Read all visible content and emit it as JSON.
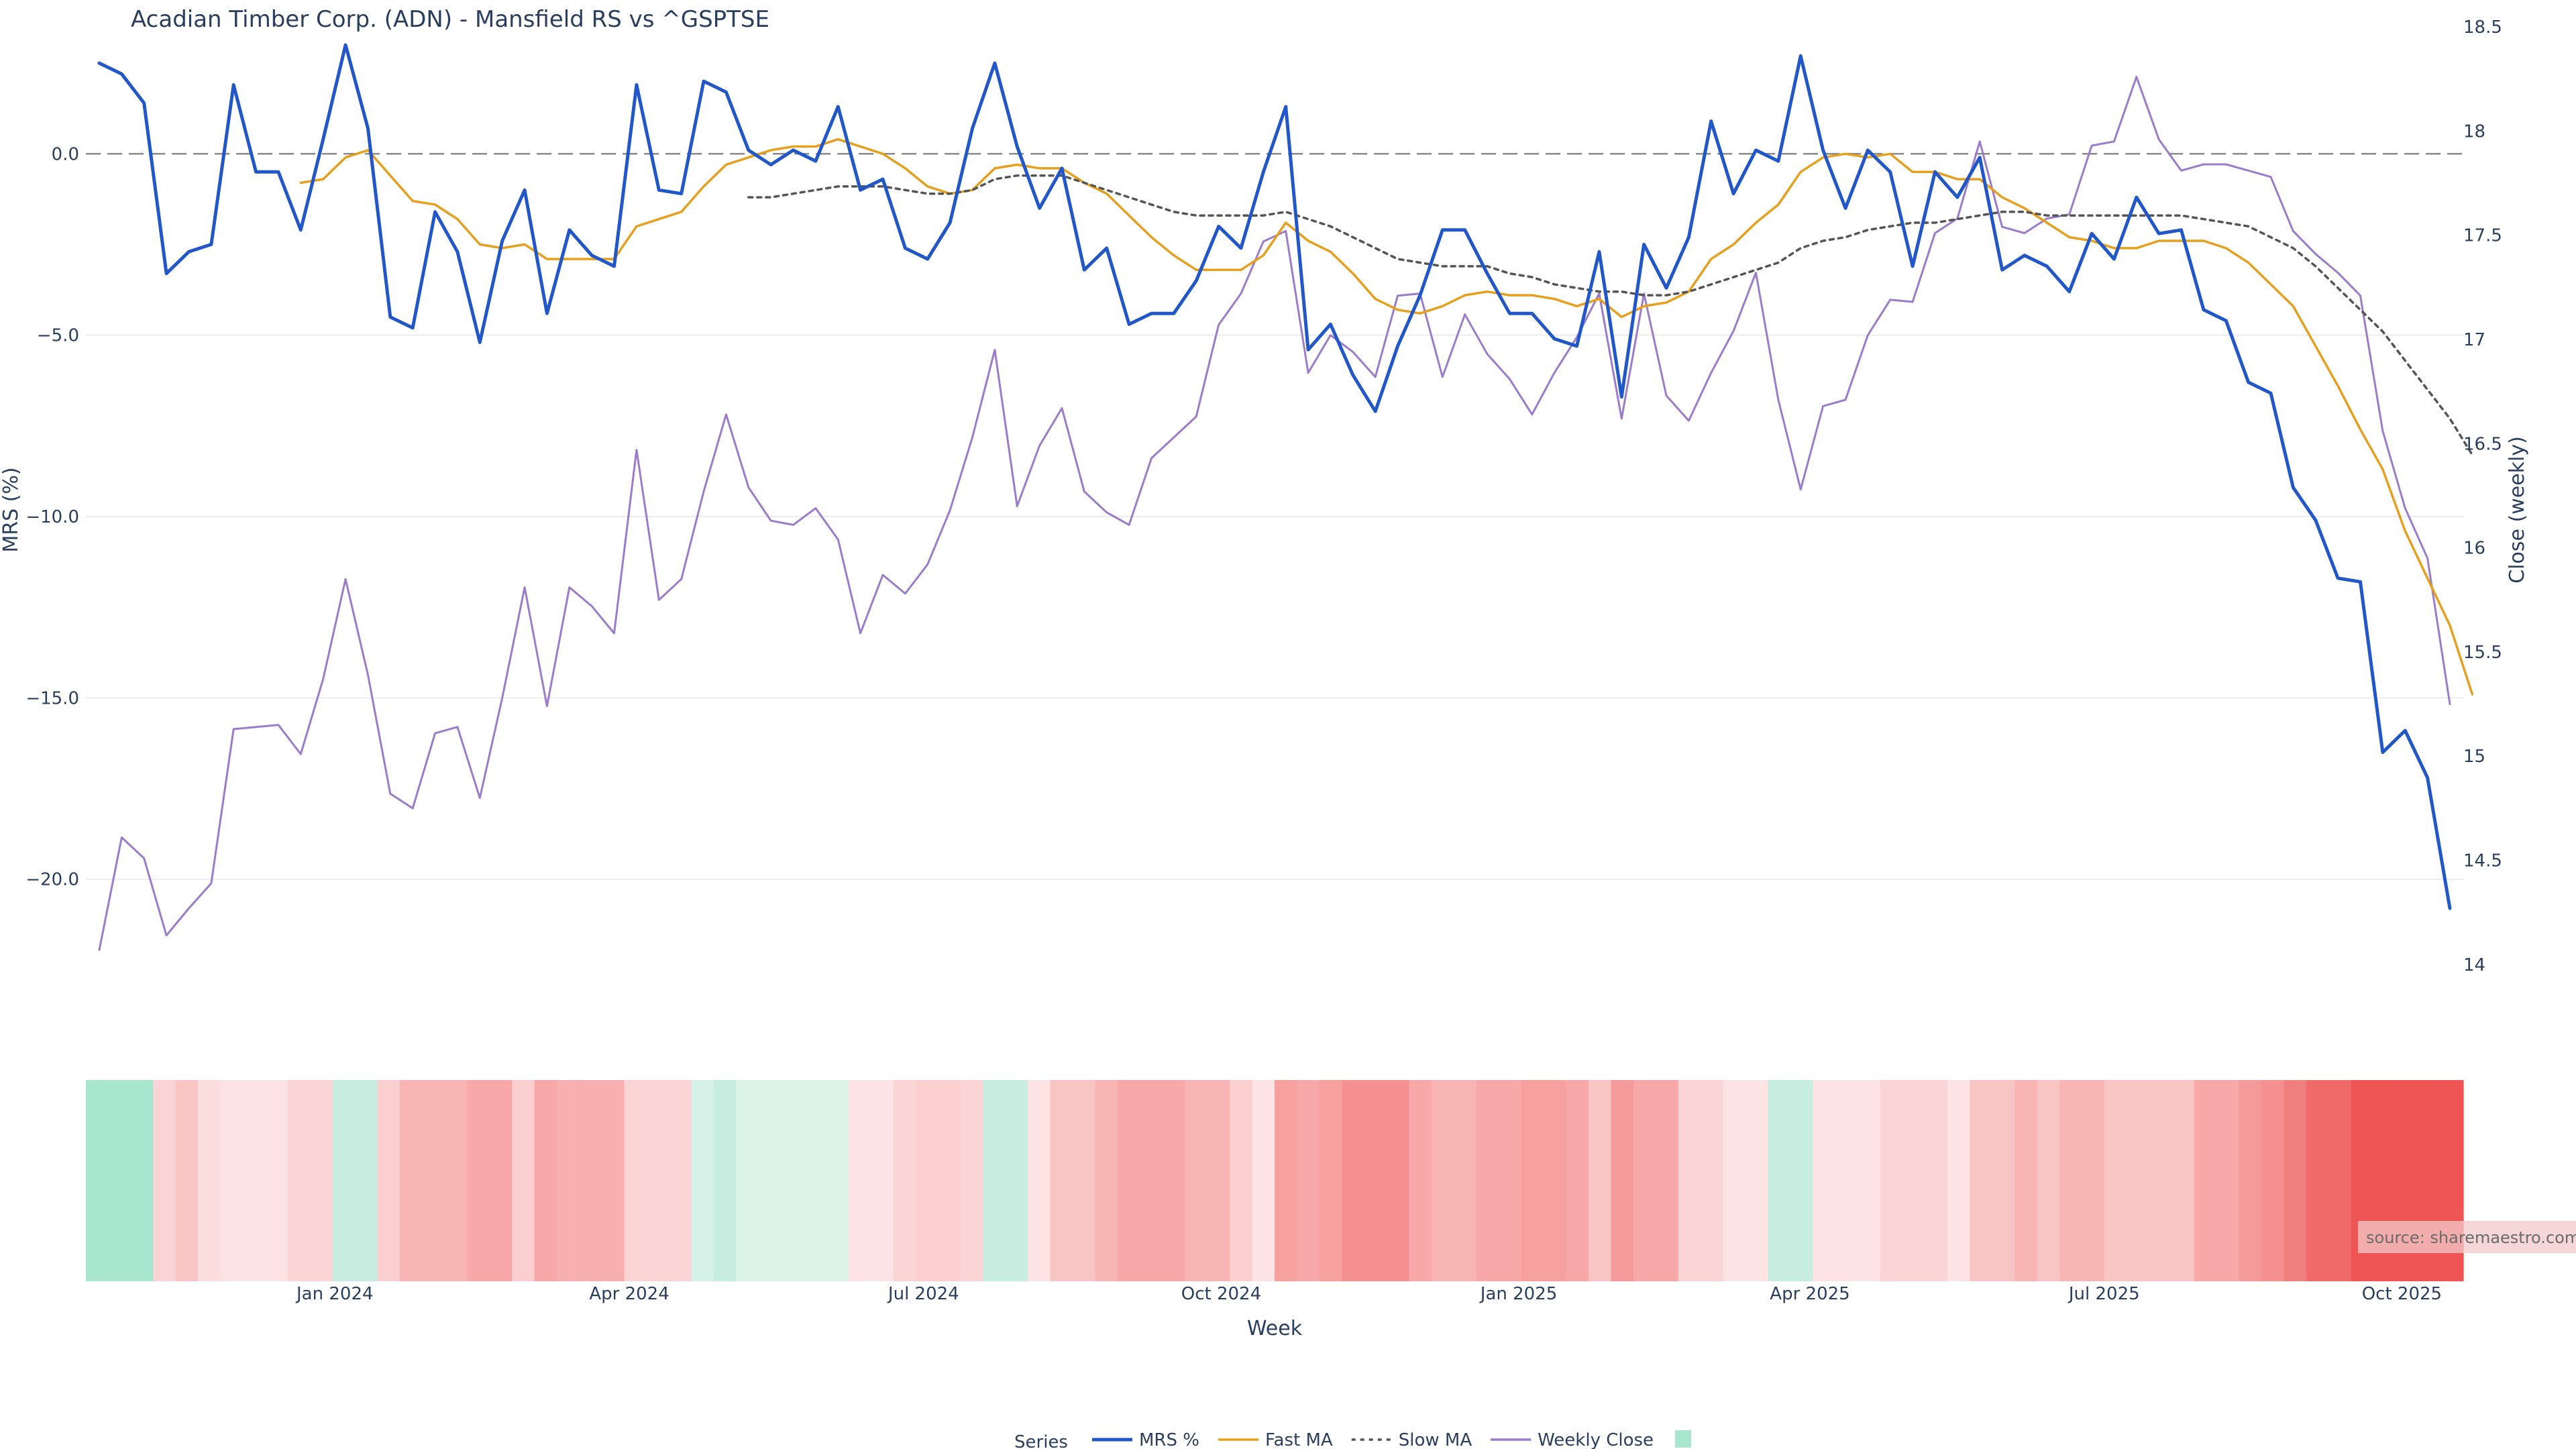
{
  "chart_data": {
    "type": "line",
    "title": "Acadian Timber Corp. (ADN) - Mansfield RS vs ^GSPTSE",
    "xlabel": "Week",
    "ylabel": "MRS (%)",
    "y2label": "Close (weekly)",
    "ylim": [
      -23.5,
      3.5
    ],
    "y2lim": [
      13.8,
      18.5
    ],
    "x_start": "2023-10-16",
    "x_end": "2025-10-20",
    "x_ticks": [
      {
        "date": "2024-01-01",
        "label": "Jan 2024"
      },
      {
        "date": "2024-04-01",
        "label": "Apr 2024"
      },
      {
        "date": "2024-07-01",
        "label": "Jul 2024"
      },
      {
        "date": "2024-10-01",
        "label": "Oct 2024"
      },
      {
        "date": "2025-01-01",
        "label": "Jan 2025"
      },
      {
        "date": "2025-04-01",
        "label": "Apr 2025"
      },
      {
        "date": "2025-07-01",
        "label": "Jul 2025"
      },
      {
        "date": "2025-10-01",
        "label": "Oct 2025"
      }
    ],
    "y_ticks": [
      {
        "value": 0,
        "label": "0.0"
      },
      {
        "value": -5,
        "label": "−5.0"
      },
      {
        "value": -10,
        "label": "−10.0"
      },
      {
        "value": -15,
        "label": "−15.0"
      },
      {
        "value": -20,
        "label": "−20.0"
      }
    ],
    "y2_ticks": [
      {
        "value": 14,
        "label": "14"
      },
      {
        "value": 14.5,
        "label": "14.5"
      },
      {
        "value": 15,
        "label": "15"
      },
      {
        "value": 15.5,
        "label": "15.5"
      },
      {
        "value": 16,
        "label": "16"
      },
      {
        "value": 16.5,
        "label": "16.5"
      },
      {
        "value": 17,
        "label": "17"
      },
      {
        "value": 17.5,
        "label": "17.5"
      },
      {
        "value": 18,
        "label": "18"
      },
      {
        "value": 18.5,
        "label": "18.5"
      }
    ],
    "zero_line": 0,
    "grid": true,
    "legend_position": "bottom",
    "legend_title": "Series",
    "series": [
      {
        "name": "MRS %",
        "color": "#2157c9",
        "style": "solid",
        "axis": "y",
        "values": [
          2.5,
          2.2,
          1.4,
          -3.3,
          -2.7,
          -2.5,
          1.9,
          -0.5,
          -0.5,
          -2.1,
          0.4,
          3.0,
          0.7,
          -4.5,
          -4.8,
          -1.6,
          -2.7,
          -5.2,
          -2.4,
          -1.0,
          -4.4,
          -2.1,
          -2.8,
          -3.1,
          1.9,
          -1.0,
          -1.1,
          2.0,
          1.7,
          0.1,
          -0.3,
          0.1,
          -0.2,
          1.3,
          -1.0,
          -0.7,
          -2.6,
          -2.9,
          -1.9,
          0.7,
          2.5,
          0.2,
          -1.5,
          -0.4,
          -3.2,
          -2.6,
          -4.7,
          -4.4,
          -4.4,
          -3.5,
          -2.0,
          -2.6,
          -0.5,
          1.3,
          -5.4,
          -4.7,
          -6.1,
          -7.1,
          -5.3,
          -3.9,
          -2.1,
          -2.1,
          -3.3,
          -4.4,
          -4.4,
          -5.1,
          -5.3,
          -2.7,
          -6.7,
          -2.5,
          -3.7,
          -2.3,
          0.9,
          -1.1,
          0.1,
          -0.2,
          2.7,
          0.1,
          -1.5,
          0.1,
          -0.5,
          -3.1,
          -0.5,
          -1.2,
          -0.1,
          -3.2,
          -2.8,
          -3.1,
          -3.8,
          -2.2,
          -2.9,
          -1.2,
          -2.2,
          -2.1,
          -4.3,
          -4.6,
          -6.3,
          -6.6,
          -9.2,
          -10.1,
          -11.7,
          -11.8,
          -16.5,
          -15.9,
          -17.2,
          -20.8
        ]
      },
      {
        "name": "Fast MA",
        "color": "#e6a01e",
        "style": "solid",
        "axis": "y",
        "start_index": 9,
        "values": [
          -0.8,
          -0.7,
          -0.1,
          0.1,
          -0.6,
          -1.3,
          -1.4,
          -1.8,
          -2.5,
          -2.6,
          -2.5,
          -2.9,
          -2.9,
          -2.9,
          -2.9,
          -2.0,
          -1.8,
          -1.6,
          -0.9,
          -0.3,
          -0.1,
          0.1,
          0.2,
          0.2,
          0.4,
          0.2,
          0.0,
          -0.4,
          -0.9,
          -1.1,
          -1.0,
          -0.4,
          -0.3,
          -0.4,
          -0.4,
          -0.8,
          -1.1,
          -1.7,
          -2.3,
          -2.8,
          -3.2,
          -3.2,
          -3.2,
          -2.8,
          -1.9,
          -2.4,
          -2.7,
          -3.3,
          -4.0,
          -4.3,
          -4.4,
          -4.2,
          -3.9,
          -3.8,
          -3.9,
          -3.9,
          -4.0,
          -4.2,
          -4.0,
          -4.5,
          -4.2,
          -4.1,
          -3.8,
          -2.9,
          -2.5,
          -1.9,
          -1.4,
          -0.5,
          -0.1,
          0.0,
          -0.1,
          0.0,
          -0.5,
          -0.5,
          -0.7,
          -0.7,
          -1.2,
          -1.5,
          -1.9,
          -2.3,
          -2.4,
          -2.6,
          -2.6,
          -2.4,
          -2.4,
          -2.4,
          -2.6,
          -3.0,
          -3.6,
          -4.2,
          -5.3,
          -6.4,
          -7.6,
          -8.7,
          -10.4,
          -11.7,
          -13.0,
          -14.9
        ]
      },
      {
        "name": "Slow MA",
        "color": "#555555",
        "style": "dot",
        "axis": "y",
        "start_index": 29,
        "values": [
          -1.2,
          -1.2,
          -1.1,
          -1.0,
          -0.9,
          -0.9,
          -0.9,
          -1.0,
          -1.1,
          -1.1,
          -1.0,
          -0.7,
          -0.6,
          -0.6,
          -0.6,
          -0.8,
          -1.0,
          -1.2,
          -1.4,
          -1.6,
          -1.7,
          -1.7,
          -1.7,
          -1.7,
          -1.6,
          -1.8,
          -2.0,
          -2.3,
          -2.6,
          -2.9,
          -3.0,
          -3.1,
          -3.1,
          -3.1,
          -3.3,
          -3.4,
          -3.6,
          -3.7,
          -3.8,
          -3.8,
          -3.9,
          -3.9,
          -3.8,
          -3.6,
          -3.4,
          -3.2,
          -3.0,
          -2.6,
          -2.4,
          -2.3,
          -2.1,
          -2.0,
          -1.9,
          -1.9,
          -1.8,
          -1.7,
          -1.6,
          -1.6,
          -1.7,
          -1.7,
          -1.7,
          -1.7,
          -1.7,
          -1.7,
          -1.7,
          -1.8,
          -1.9,
          -2.0,
          -2.3,
          -2.6,
          -3.1,
          -3.7,
          -4.3,
          -4.9,
          -5.7,
          -6.5,
          -7.3,
          -8.3
        ]
      },
      {
        "name": "Weekly Close",
        "color": "#9b7ccb",
        "style": "solid",
        "axis": "y2",
        "values": [
          14.07,
          14.61,
          14.51,
          14.14,
          14.27,
          14.39,
          15.13,
          15.14,
          15.15,
          15.01,
          15.37,
          15.85,
          15.39,
          14.82,
          14.75,
          15.11,
          15.14,
          14.8,
          15.28,
          15.81,
          15.24,
          15.81,
          15.72,
          15.59,
          16.47,
          15.75,
          15.85,
          16.27,
          16.64,
          16.29,
          16.13,
          16.11,
          16.19,
          16.04,
          15.59,
          15.87,
          15.78,
          15.92,
          16.18,
          16.53,
          16.95,
          16.2,
          16.49,
          16.67,
          16.27,
          16.17,
          16.11,
          16.43,
          16.53,
          16.63,
          17.07,
          17.22,
          17.47,
          17.52,
          16.84,
          17.02,
          16.94,
          16.82,
          17.21,
          17.22,
          16.82,
          17.12,
          16.93,
          16.81,
          16.64,
          16.84,
          17.01,
          17.22,
          16.62,
          17.22,
          16.73,
          16.61,
          16.84,
          17.04,
          17.32,
          16.71,
          16.28,
          16.68,
          16.71,
          17.02,
          17.19,
          17.18,
          17.51,
          17.58,
          17.95,
          17.54,
          17.51,
          17.58,
          17.6,
          17.93,
          17.95,
          18.26,
          17.96,
          17.81,
          17.84,
          17.84,
          17.81,
          17.78,
          17.52,
          17.41,
          17.32,
          17.21,
          16.56,
          16.19,
          15.95,
          15.25
        ]
      }
    ],
    "heatmap_strip": {
      "colors": [
        "#a8e6cf",
        "#a8e6cf",
        "#a8e6cf",
        "#fbd5d5",
        "#f9c4c4",
        "#fcdede",
        "#fde3e3",
        "#fde3e3",
        "#fde3e3",
        "#fbd5d5",
        "#fbd5d5",
        "#c6ede0",
        "#c6ede0",
        "#fbcfcf",
        "#f9b4b4",
        "#f9b4b4",
        "#f9b4b4",
        "#f8a8a8",
        "#f8a8a8",
        "#fbcfcf",
        "#f8a8a8",
        "#f8afaf",
        "#f8afaf",
        "#f8afaf",
        "#fbd5d5",
        "#fbd5d5",
        "#fbd5d5",
        "#d6f1e7",
        "#c6ede0",
        "#dcf3ea",
        "#dcf3ea",
        "#dcf3ea",
        "#dcf3ea",
        "#dcf3ea",
        "#fde3e3",
        "#fde3e3",
        "#fbd5d5",
        "#fbcfcf",
        "#fbcfcf",
        "#fbd5d5",
        "#c6ede0",
        "#c6ede0",
        "#fde3e3",
        "#f9c4c4",
        "#f9c4c4",
        "#f9b4b4",
        "#f8a8a8",
        "#f8a8a8",
        "#f8a8a8",
        "#f9b4b4",
        "#f9b4b4",
        "#fbcfcf",
        "#fde3e3",
        "#f7a0a0",
        "#f8a8a8",
        "#f6a0a0",
        "#f49090",
        "#f49090",
        "#f49090",
        "#f8a8a8",
        "#f9b4b4",
        "#f9b4b4",
        "#f8a8a8",
        "#f8a8a8",
        "#f6a0a0",
        "#f6a0a0",
        "#f8a8a8",
        "#f9c4c4",
        "#f49a9a",
        "#f8a8a8",
        "#f8a8a8",
        "#fbd5d5",
        "#fbd5d5",
        "#fde3e3",
        "#fde3e3",
        "#c6ede0",
        "#c6ede0",
        "#fde3e3",
        "#fde3e3",
        "#fde3e3",
        "#fbd5d5",
        "#fbd5d5",
        "#fbd5d5",
        "#fde3e3",
        "#f9c4c4",
        "#f9c4c4",
        "#f9b4b4",
        "#f9c4c4",
        "#f9b4b4",
        "#f9b4b4",
        "#f9c4c4",
        "#f9c4c4",
        "#f9c4c4",
        "#f9c4c4",
        "#f8a8a8",
        "#f8a8a8",
        "#f49a9a",
        "#f49090",
        "#f08080",
        "#f06a6a",
        "#f06a6a",
        "#ef5555",
        "#ef5555",
        "#ef5555",
        "#ef5555",
        "#ef5555"
      ]
    },
    "source_text": "source: sharemaestro.com"
  }
}
